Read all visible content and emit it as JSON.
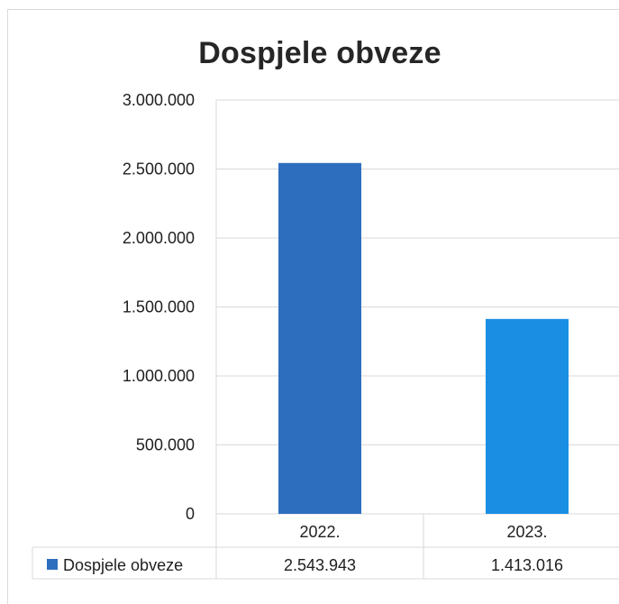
{
  "chart_data": {
    "type": "bar",
    "title": "Dospjele obveze",
    "categories": [
      "2022.",
      "2023."
    ],
    "series": [
      {
        "name": "Dospjele obveze",
        "values": [
          2543943,
          1413016
        ],
        "value_labels": [
          "2.543.943",
          "1.413.016"
        ],
        "colors": [
          "#2e6ebf",
          "#1a8ee3"
        ]
      }
    ],
    "ylim": [
      0,
      3000000
    ],
    "yticks": [
      0,
      500000,
      1000000,
      1500000,
      2000000,
      2500000,
      3000000
    ],
    "ytick_labels": [
      "0",
      "500.000",
      "1.000.000",
      "1.500.000",
      "2.000.000",
      "2.500.000",
      "3.000.000"
    ],
    "grid": true,
    "legend": "data-table",
    "xlabel": "",
    "ylabel": ""
  },
  "colors": {
    "grid": "#d9d9d9",
    "legend_key": "#2e6ebf"
  }
}
